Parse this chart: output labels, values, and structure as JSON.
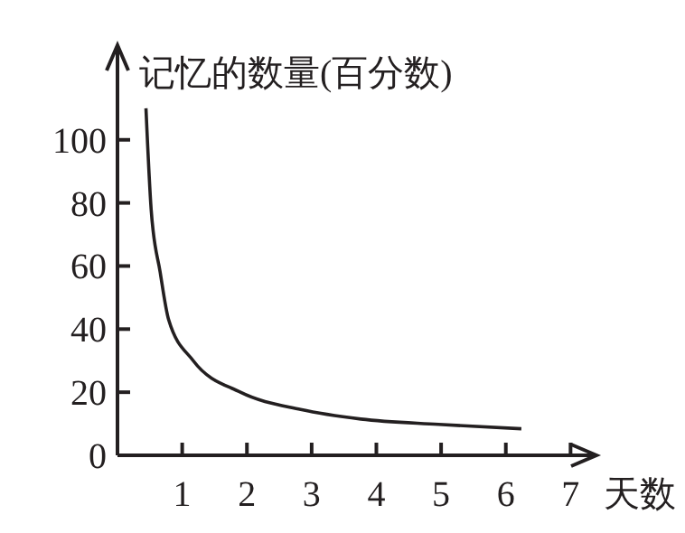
{
  "chart_data": {
    "type": "line",
    "ylabel": "记忆的数量(百分数)",
    "xlabel": "天数",
    "x": [
      0.44,
      0.52,
      0.66,
      0.79,
      1.17,
      1.9,
      2.83,
      3.76,
      4.96,
      6.24
    ],
    "series": [
      {
        "color": "#231f20",
        "values": [
          110,
          78,
          58,
          43,
          30,
          20,
          14.5,
          11.5,
          9.8,
          8.4
        ]
      }
    ],
    "xlim": [
      0,
      7.4
    ],
    "ylim": [
      0,
      130
    ],
    "xticks": [
      1,
      2,
      3,
      4,
      5,
      6,
      7
    ],
    "yticks": [
      0,
      20,
      40,
      60,
      80,
      100
    ],
    "marker": "none",
    "line_style": "solid"
  }
}
